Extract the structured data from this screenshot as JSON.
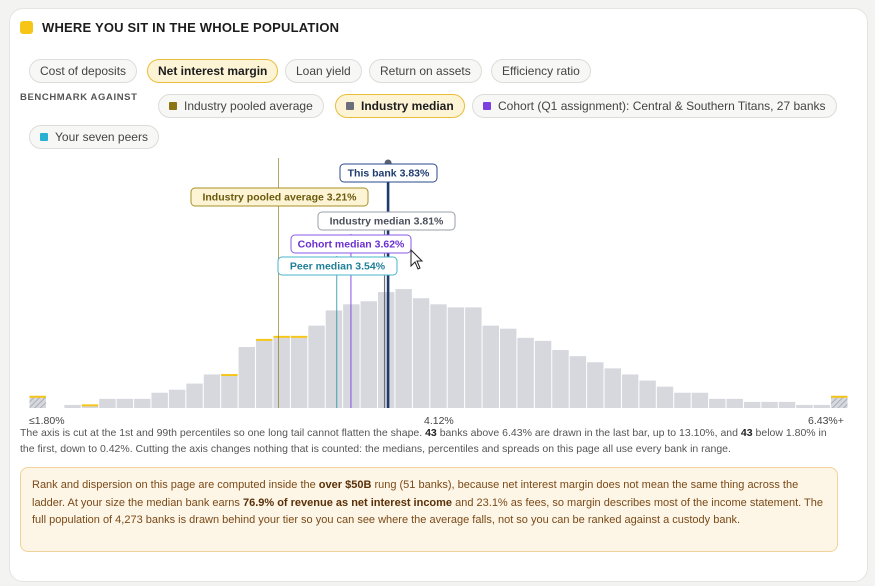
{
  "section_title": "WHERE YOU SIT IN THE WHOLE POPULATION",
  "metric_tabs": [
    {
      "label": "Cost of deposits",
      "active": false
    },
    {
      "label": "Net interest margin",
      "active": true
    },
    {
      "label": "Loan yield",
      "active": false
    },
    {
      "label": "Return on assets",
      "active": false
    },
    {
      "label": "Efficiency ratio",
      "active": false
    }
  ],
  "benchmark": {
    "label": "BENCHMARK AGAINST",
    "options": [
      {
        "label": "Industry pooled average",
        "color": "#8a7414",
        "active": false
      },
      {
        "label": "Industry median",
        "color": "#6b6f7a",
        "active": true
      },
      {
        "label": "Cohort (Q1 assignment): Central & Southern Titans, 27 banks",
        "color": "#7b3fe0",
        "active": false
      },
      {
        "label": "Your seven peers",
        "color": "#2ab0d3",
        "active": false
      }
    ]
  },
  "chart_data": {
    "type": "bar",
    "title": "",
    "xlabel": "",
    "ylabel": "",
    "x_range": [
      1.8,
      6.43
    ],
    "tick_labels": [
      "≤1.80%",
      "4.12%",
      "6.43%+"
    ],
    "values": [
      4,
      0,
      1,
      1,
      3,
      3,
      3,
      5,
      6,
      8,
      11,
      11,
      20,
      22,
      23,
      23,
      27,
      32,
      34,
      35,
      38,
      39,
      36,
      34,
      33,
      33,
      27,
      26,
      23,
      22,
      19,
      17,
      15,
      13,
      11,
      9,
      7,
      5,
      5,
      3,
      3,
      2,
      2,
      2,
      1,
      1,
      4
    ],
    "highlight_tops": [
      4,
      0,
      0,
      0.3,
      0,
      0,
      0,
      0,
      0,
      0,
      0,
      0.2,
      0,
      1,
      1,
      1,
      0,
      0,
      0,
      0,
      0,
      0,
      0,
      0,
      0,
      0,
      0,
      0,
      0,
      0,
      0,
      0,
      0,
      0,
      0,
      0,
      0,
      0,
      0,
      0,
      0,
      0,
      0,
      0,
      0,
      0,
      4
    ],
    "markers": [
      {
        "name": "This bank",
        "value": 3.83,
        "label": "This bank 3.83%",
        "color": "#1e3a6e"
      },
      {
        "name": "Industry pooled average",
        "value": 3.21,
        "label": "Industry pooled average 3.21%",
        "color": "#8a7414"
      },
      {
        "name": "Industry median",
        "value": 3.81,
        "label": "Industry median 3.81%",
        "color": "#6b6f7a"
      },
      {
        "name": "Cohort median",
        "value": 3.62,
        "label": "Cohort median 3.62%",
        "color": "#7b3fe0"
      },
      {
        "name": "Peer median",
        "value": 3.54,
        "label": "Peer median 3.54%",
        "color": "#1f8fa8"
      }
    ],
    "grid": false,
    "legend": "none"
  },
  "axis_note": {
    "p1": "The axis is cut at the 1st and 99th percentiles so one long tail cannot flatten the shape. ",
    "n1": "43",
    "p2": " banks above 6.43% are drawn in the last bar, up to 13.10%, and ",
    "n2": "43",
    "p3": " below 1.80% in the first, down to 0.42%. Cutting the axis changes nothing that is counted: the medians, percentiles and spreads on this page all use every bank in range."
  },
  "callout": {
    "p1": "Rank and dispersion on this page are computed inside the ",
    "b1": "over $50B",
    "p2": " rung (51 banks), because net interest margin does not mean the same thing across the ladder. At your size the median bank earns ",
    "b2": "76.9% of revenue as net interest income",
    "p3": " and 23.1% as fees, so margin describes most of the income statement. The full population of 4,273 banks is drawn behind your tier so you can see where the average falls, not so you can be ranked against a custody bank."
  }
}
